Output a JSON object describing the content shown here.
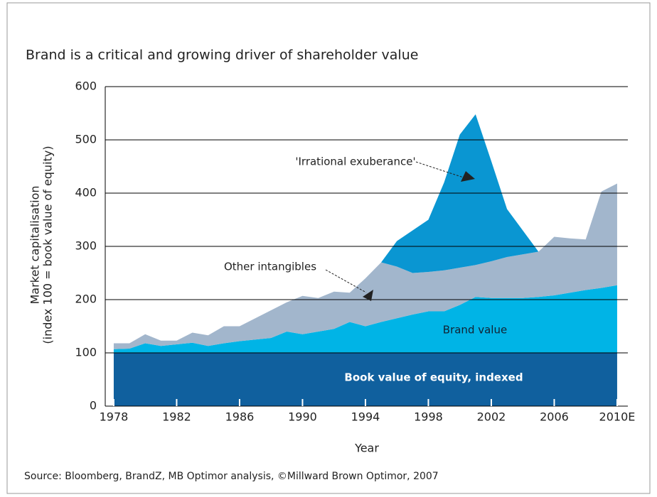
{
  "chart_data": {
    "type": "stacked_area",
    "title": "Brand is a critical and growing driver of shareholder value",
    "ylabel": [
      "Market capitalisation",
      "(index 100 = book value of equity)"
    ],
    "xlabel": "Year",
    "source": "Source: Bloomberg, BrandZ, MB Optimor analysis, ©Millward Brown Optimor, 2007",
    "x": [
      1978,
      1979,
      1980,
      1981,
      1982,
      1983,
      1984,
      1985,
      1986,
      1987,
      1988,
      1989,
      1990,
      1991,
      1992,
      1993,
      1994,
      1995,
      1996,
      1997,
      1998,
      1999,
      2000,
      2001,
      2002,
      2003,
      2004,
      2005,
      2006,
      2007,
      2008,
      2009,
      2010
    ],
    "series": [
      {
        "name": "Book value of equity, indexed",
        "color": "#10609e",
        "values": [
          100,
          100,
          100,
          100,
          100,
          100,
          100,
          100,
          100,
          100,
          100,
          100,
          100,
          100,
          100,
          100,
          100,
          100,
          100,
          100,
          100,
          100,
          100,
          100,
          100,
          100,
          100,
          100,
          100,
          100,
          100,
          100,
          100
        ]
      },
      {
        "name": "Brand value",
        "color": "#00b4e6",
        "values": [
          7,
          8,
          18,
          13,
          16,
          19,
          13,
          18,
          22,
          25,
          28,
          40,
          35,
          40,
          45,
          58,
          50,
          58,
          65,
          72,
          78,
          78,
          90,
          105,
          103,
          103,
          103,
          105,
          108,
          113,
          118,
          122,
          127
        ]
      },
      {
        "name": "Other intangibles",
        "color": "#a2b6cc",
        "values": [
          11,
          10,
          17,
          10,
          7,
          19,
          20,
          32,
          28,
          40,
          52,
          55,
          72,
          63,
          70,
          55,
          90,
          112,
          97,
          78,
          74,
          77,
          70,
          60,
          69,
          77,
          82,
          85,
          110,
          102,
          95,
          181,
          191
        ]
      },
      {
        "name": "'Irrational exuberance'",
        "color": "#0a96d2",
        "values": [
          null,
          null,
          null,
          null,
          null,
          null,
          null,
          null,
          null,
          null,
          null,
          null,
          null,
          null,
          null,
          null,
          null,
          0,
          48,
          80,
          98,
          165,
          250,
          283,
          188,
          90,
          45,
          0,
          null,
          null,
          null,
          null,
          null
        ]
      }
    ],
    "xlim": [
      1977.46,
      2010.68
    ],
    "ylim": [
      0,
      600
    ],
    "yticks": [
      0,
      100,
      200,
      300,
      400,
      500,
      600
    ],
    "xticks": [
      1978,
      1982,
      1986,
      1990,
      1994,
      1998,
      2002,
      2006,
      {
        "value": 2010,
        "label": "2010E"
      }
    ],
    "grid": true
  }
}
